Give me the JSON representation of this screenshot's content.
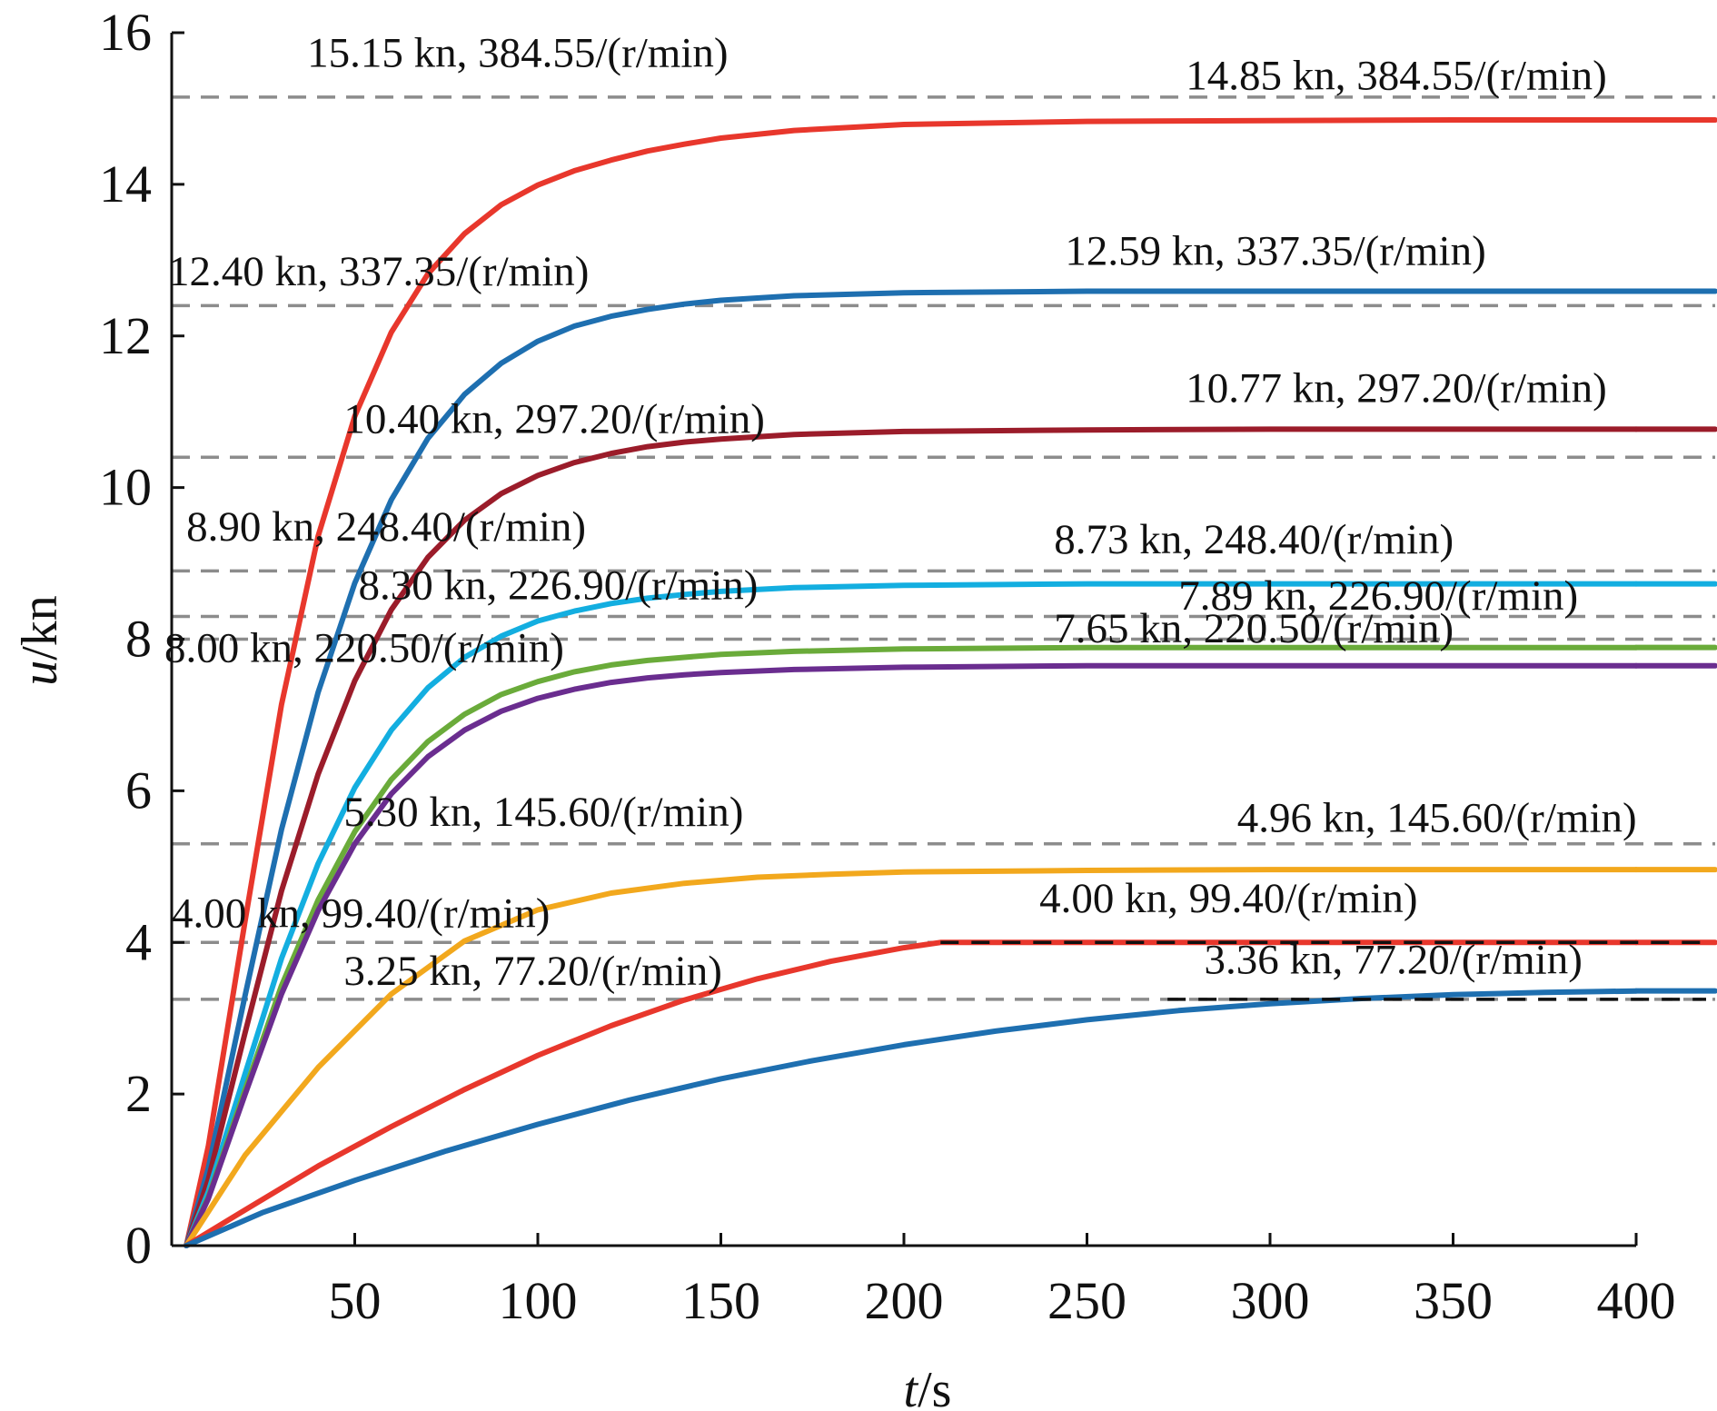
{
  "chart_data": {
    "type": "line",
    "xlabel": "t/s",
    "ylabel": "u/kn",
    "xlim": [
      0,
      400
    ],
    "ylim": [
      0,
      16
    ],
    "grid": false,
    "x_ticks": [
      50,
      100,
      150,
      200,
      250,
      300,
      350,
      400
    ],
    "y_ticks": [
      0,
      2,
      4,
      6,
      8,
      10,
      12,
      14,
      16
    ],
    "reference_levels": [
      15.15,
      12.4,
      10.4,
      8.9,
      8.3,
      8.0,
      5.3,
      4.0,
      3.25
    ],
    "series": [
      {
        "color": "#e8372c",
        "steady": 14.85,
        "reference": 15.15,
        "rpm": 384.55,
        "x": [
          4,
          10,
          20,
          30,
          40,
          50,
          60,
          70,
          80,
          90,
          100,
          110,
          120,
          130,
          140,
          150,
          170,
          200,
          250,
          300,
          350,
          400
        ],
        "values": [
          0,
          1.31,
          4.27,
          7.14,
          9.36,
          10.94,
          12.05,
          12.82,
          13.35,
          13.73,
          13.99,
          14.18,
          14.32,
          14.44,
          14.53,
          14.61,
          14.71,
          14.79,
          14.83,
          14.84,
          14.85,
          14.85
        ]
      },
      {
        "color": "#1e6fb0",
        "steady": 12.59,
        "reference": 12.4,
        "rpm": 337.35,
        "x": [
          4,
          10,
          20,
          30,
          40,
          50,
          60,
          70,
          80,
          90,
          100,
          110,
          120,
          130,
          140,
          150,
          170,
          200,
          250,
          300,
          350,
          400
        ],
        "values": [
          0,
          1.02,
          3.29,
          5.49,
          7.3,
          8.74,
          9.84,
          10.65,
          11.23,
          11.64,
          11.93,
          12.13,
          12.26,
          12.35,
          12.42,
          12.47,
          12.53,
          12.57,
          12.59,
          12.59,
          12.59,
          12.59
        ]
      },
      {
        "color": "#9b1c2a",
        "steady": 10.77,
        "reference": 10.4,
        "rpm": 297.2,
        "x": [
          4,
          10,
          20,
          30,
          40,
          50,
          60,
          70,
          80,
          90,
          100,
          110,
          120,
          130,
          140,
          150,
          170,
          200,
          250,
          300,
          350,
          400
        ],
        "values": [
          0,
          0.87,
          2.8,
          4.68,
          6.22,
          7.45,
          8.39,
          9.08,
          9.57,
          9.92,
          10.16,
          10.33,
          10.45,
          10.54,
          10.6,
          10.64,
          10.7,
          10.74,
          10.76,
          10.77,
          10.77,
          10.77
        ]
      },
      {
        "color": "#13aee0",
        "steady": 8.73,
        "reference": 8.9,
        "rpm": 248.4,
        "x": [
          4,
          10,
          20,
          30,
          40,
          50,
          60,
          70,
          80,
          90,
          100,
          110,
          120,
          130,
          140,
          150,
          170,
          200,
          250,
          300,
          350,
          400
        ],
        "values": [
          0,
          0.71,
          2.26,
          3.79,
          5.04,
          6.04,
          6.8,
          7.36,
          7.76,
          8.04,
          8.24,
          8.37,
          8.47,
          8.54,
          8.59,
          8.63,
          8.68,
          8.71,
          8.73,
          8.73,
          8.73,
          8.73
        ]
      },
      {
        "color": "#6aab3a",
        "steady": 7.89,
        "reference": 8.3,
        "rpm": 226.9,
        "x": [
          4,
          10,
          20,
          30,
          40,
          50,
          60,
          70,
          80,
          90,
          100,
          110,
          120,
          130,
          140,
          150,
          170,
          200,
          250,
          300,
          350,
          400
        ],
        "values": [
          0,
          0.64,
          2.05,
          3.43,
          4.56,
          5.46,
          6.15,
          6.65,
          7.01,
          7.27,
          7.44,
          7.57,
          7.66,
          7.72,
          7.76,
          7.8,
          7.84,
          7.87,
          7.89,
          7.89,
          7.89,
          7.89
        ]
      },
      {
        "color": "#6a2d8f",
        "steady": 7.65,
        "reference": 8.0,
        "rpm": 220.5,
        "x": [
          4,
          10,
          20,
          30,
          40,
          50,
          60,
          70,
          80,
          90,
          100,
          110,
          120,
          130,
          140,
          150,
          170,
          200,
          250,
          300,
          350,
          400
        ],
        "values": [
          0,
          0.62,
          1.99,
          3.32,
          4.42,
          5.3,
          5.96,
          6.45,
          6.8,
          7.05,
          7.22,
          7.34,
          7.43,
          7.49,
          7.53,
          7.56,
          7.6,
          7.63,
          7.65,
          7.65,
          7.65,
          7.65
        ]
      },
      {
        "color": "#f2a81d",
        "steady": 4.96,
        "reference": 5.3,
        "rpm": 145.6,
        "x": [
          4,
          20,
          40,
          60,
          80,
          100,
          120,
          140,
          160,
          180,
          200,
          250,
          300,
          350,
          400
        ],
        "values": [
          0,
          1.19,
          2.35,
          3.32,
          4.02,
          4.43,
          4.65,
          4.78,
          4.86,
          4.9,
          4.93,
          4.95,
          4.96,
          4.96,
          4.96
        ]
      },
      {
        "color": "#e8372c",
        "steady": 4.0,
        "reference": 4.0,
        "rpm": 99.4,
        "x": [
          4,
          20,
          40,
          60,
          80,
          100,
          120,
          140,
          160,
          180,
          200,
          210,
          250,
          300,
          350,
          400
        ],
        "values": [
          0,
          0.47,
          1.05,
          1.57,
          2.06,
          2.51,
          2.9,
          3.24,
          3.52,
          3.75,
          3.93,
          4.0,
          4.0,
          4.0,
          4.0,
          4.0
        ]
      },
      {
        "color": "#1e6fb0",
        "steady": 3.36,
        "reference": 3.25,
        "rpm": 77.2,
        "x": [
          4,
          25,
          50,
          75,
          100,
          125,
          150,
          175,
          200,
          225,
          250,
          275,
          300,
          325,
          350,
          375,
          400
        ],
        "values": [
          0,
          0.44,
          0.86,
          1.25,
          1.6,
          1.92,
          2.2,
          2.44,
          2.65,
          2.83,
          2.98,
          3.1,
          3.19,
          3.26,
          3.31,
          3.34,
          3.36
        ]
      }
    ],
    "annotations": [
      {
        "text": "15.15 kn, 384.55/(r/min)",
        "x": 37,
        "y": 15.55
      },
      {
        "text": "14.85 kn, 384.55/(r/min)",
        "x": 277,
        "y": 15.25
      },
      {
        "text": "12.40 kn, 337.35/(r/min)",
        "x": -1,
        "y": 12.67
      },
      {
        "text": "12.59 kn, 337.35/(r/min)",
        "x": 244,
        "y": 12.94
      },
      {
        "text": "10.40 kn, 297.20/(r/min)",
        "x": 47,
        "y": 10.72
      },
      {
        "text": "10.77 kn, 297.20/(r/min)",
        "x": 277,
        "y": 11.13
      },
      {
        "text": "8.90 kn, 248.40/(r/min)",
        "x": 4,
        "y": 9.3
      },
      {
        "text": "8.73 kn, 248.40/(r/min)",
        "x": 241,
        "y": 9.13
      },
      {
        "text": "8.30 kn, 226.90/(r/min)",
        "x": 51,
        "y": 8.53
      },
      {
        "text": "7.89 kn, 226.90/(r/min)",
        "x": 275,
        "y": 8.39
      },
      {
        "text": "7.65 kn, 220.50/(r/min)",
        "x": 241,
        "y": 7.96
      },
      {
        "text": "8.00 kn, 220.50/(r/min)",
        "x": -2,
        "y": 7.7
      },
      {
        "text": "5.30 kn, 145.60/(r/min)",
        "x": 47,
        "y": 5.54
      },
      {
        "text": "4.96 kn, 145.60/(r/min)",
        "x": 291,
        "y": 5.46
      },
      {
        "text": "4.00 kn, 99.40/(r/min)",
        "x": 0,
        "y": 4.2
      },
      {
        "text": "4.00 kn, 99.40/(r/min)",
        "x": 237,
        "y": 4.4
      },
      {
        "text": "3.25 kn, 77.20/(r/min)",
        "x": 47,
        "y": 3.44
      },
      {
        "text": "3.36 kn, 77.20/(r/min)",
        "x": 282,
        "y": 3.59
      }
    ]
  }
}
